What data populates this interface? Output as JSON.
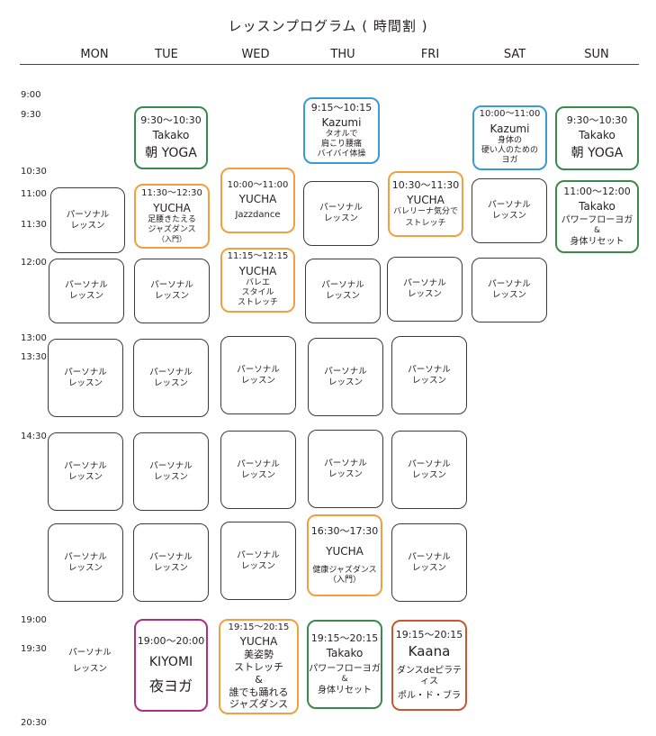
{
  "title": "レッスンプログラム ( 時間割 )",
  "days": [
    "MON",
    "TUE",
    "WED",
    "THU",
    "FRI",
    "SAT",
    "SUN"
  ],
  "times": [
    "9:00",
    "9:30",
    "10:30",
    "11:00",
    "11:30",
    "12:00",
    "13:00",
    "13:30",
    "14:30",
    "19:00",
    "19:30",
    "20:30"
  ],
  "personal": "パーソナル",
  "lesson": "レッスン",
  "classes": {
    "tue_yoga": {
      "time": "9:30〜10:30",
      "name": "Takako",
      "desc": "朝 YOGA"
    },
    "thu_kazumi": {
      "time": "9:15〜10:15",
      "name": "Kazumi",
      "d1": "タオルで",
      "d2": "肩こり腰痛",
      "d3": "バイバイ体操"
    },
    "sat_kazumi": {
      "time": "10:00〜11:00",
      "name": "Kazumi",
      "d1": "身体の",
      "d2": "硬い人のための",
      "d3": "ヨガ"
    },
    "sun_yoga": {
      "time": "9:30〜10:30",
      "name": "Takako",
      "desc": "朝 YOGA"
    },
    "wed_jazz": {
      "time": "10:00〜11:00",
      "name": "YUCHA",
      "desc": "Jazzdance"
    },
    "tue_yucha": {
      "time": "11:30〜12:30",
      "name": "YUCHA",
      "d1": "足腰きたえる",
      "d2": "ジャズダンス",
      "d3": "（入門）"
    },
    "fri_yucha": {
      "time": "10:30〜11:30",
      "name": "YUCHA",
      "d1": "バレリーナ気分で",
      "d2": "ストレッチ"
    },
    "sun_flow": {
      "time": "11:00〜12:00",
      "name": "Takako",
      "d1": "パワーフローヨガ",
      "d2": "&",
      "d3": "身体リセット"
    },
    "wed_ballet": {
      "time": "11:15〜12:15",
      "name": "YUCHA",
      "d1": "バレエ",
      "d2": "スタイル",
      "d3": "ストレッチ"
    },
    "thu_health": {
      "time": "16:30〜17:30",
      "name": "YUCHA",
      "d1": "健康ジャズダンス",
      "d2": "（入門）"
    },
    "tue_kiyomi": {
      "time": "19:00〜20:00",
      "name": "KIYOMI",
      "desc": "夜ヨガ"
    },
    "wed_evening": {
      "time": "19:15〜20:15",
      "name": "YUCHA",
      "d1": "美姿勢",
      "d2": "ストレッチ",
      "d3": "&",
      "d4": "誰でも踊れる",
      "d5": "ジャズダンス"
    },
    "thu_evening": {
      "time": "19:15〜20:15",
      "name": "Takako",
      "d1": "パワーフローヨガ",
      "d2": "&",
      "d3": "身体リセット"
    },
    "fri_evening": {
      "time": "19:15〜20:15",
      "name": "Kaana",
      "d1": "ダンスdeピラティス",
      "d2": "ポル・ド・ブラ"
    }
  },
  "colors": {
    "green": "#3b8a4d",
    "orange": "#f0a040",
    "blue": "#3a9ad6",
    "purple": "#a8327f",
    "rust": "#c9562d"
  }
}
